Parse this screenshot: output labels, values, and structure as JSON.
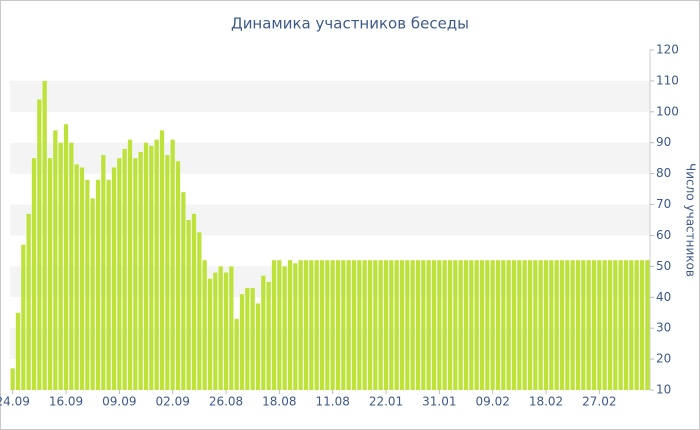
{
  "chart_data": {
    "type": "bar",
    "title": "Динамика участников беседы",
    "y_label": "Число участников",
    "categories": [
      "24.09",
      null,
      null,
      null,
      null,
      null,
      null,
      null,
      null,
      null,
      "16.09",
      null,
      null,
      null,
      null,
      null,
      null,
      null,
      null,
      null,
      "09.09",
      null,
      null,
      null,
      null,
      null,
      null,
      null,
      null,
      null,
      "02.09",
      null,
      null,
      null,
      null,
      null,
      null,
      null,
      null,
      null,
      "26.08",
      null,
      null,
      null,
      null,
      null,
      null,
      null,
      null,
      null,
      "18.08",
      null,
      null,
      null,
      null,
      null,
      null,
      null,
      null,
      null,
      "11.08",
      null,
      null,
      null,
      null,
      null,
      null,
      null,
      null,
      null,
      "22.01",
      null,
      null,
      null,
      null,
      null,
      null,
      null,
      null,
      null,
      "31.01",
      null,
      null,
      null,
      null,
      null,
      null,
      null,
      null,
      null,
      "09.02",
      null,
      null,
      null,
      null,
      null,
      null,
      null,
      null,
      null,
      "18.02",
      null,
      null,
      null,
      null,
      null,
      null,
      null,
      null,
      null,
      "27.02",
      null,
      null,
      null,
      null,
      null,
      null,
      null,
      null,
      null
    ],
    "values": [
      17,
      35,
      57,
      67,
      85,
      104,
      110,
      85,
      94,
      90,
      96,
      90,
      83,
      82,
      78,
      72,
      78,
      86,
      78,
      82,
      85,
      88,
      91,
      85,
      87,
      90,
      89,
      91,
      94,
      86,
      91,
      84,
      74,
      65,
      67,
      61,
      52,
      46,
      48,
      50,
      48,
      50,
      33,
      41,
      43,
      43,
      38,
      47,
      45,
      52,
      52,
      50,
      52,
      51,
      52,
      52,
      52,
      52,
      52,
      52,
      52,
      52,
      52,
      52,
      52,
      52,
      52,
      52,
      52,
      52,
      52,
      52,
      52,
      52,
      52,
      52,
      52,
      52,
      52,
      52,
      52,
      52,
      52,
      52,
      52,
      52,
      52,
      52,
      52,
      52,
      52,
      52,
      52,
      52,
      52,
      52,
      52,
      52,
      52,
      52,
      52,
      52,
      52,
      52,
      52,
      52,
      52,
      52,
      52,
      52,
      52,
      52,
      52,
      52,
      52,
      52,
      52,
      52,
      52,
      52
    ],
    "color": "#bde33b",
    "ylim": [
      10,
      120
    ],
    "yticks": [
      10,
      20,
      30,
      40,
      50,
      60,
      70,
      80,
      90,
      100,
      110,
      120
    ],
    "grid": "bands",
    "band_color": "#f4f4f4",
    "y_axis_side": "right"
  }
}
